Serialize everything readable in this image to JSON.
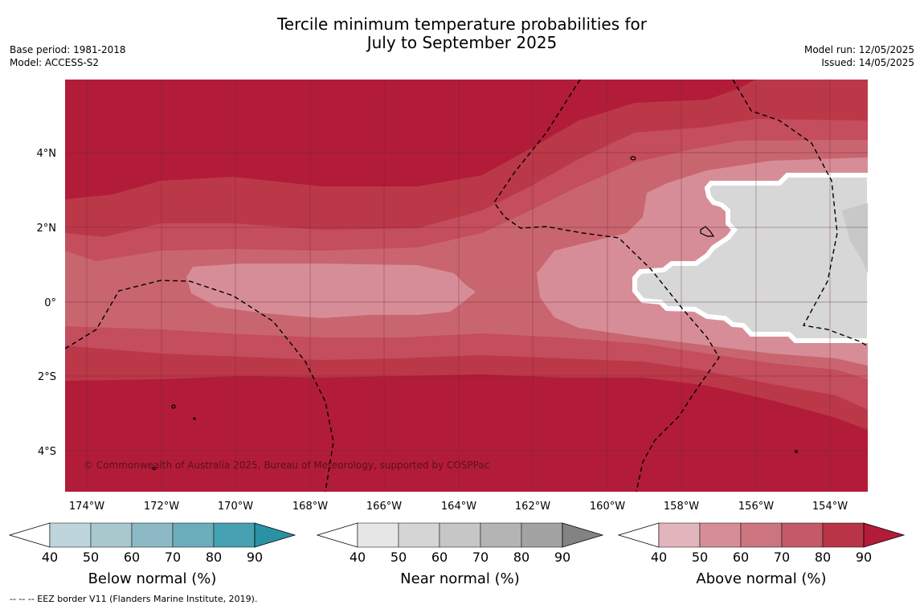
{
  "title_line1": "Tercile minimum temperature probabilities for",
  "title_line2": "July to September 2025",
  "meta_left": {
    "base_period": "Base period: 1981-2018",
    "model": "Model: ACCESS-S2"
  },
  "meta_right": {
    "model_run": "Model run: 12/05/2025",
    "issued": "Issued: 14/05/2025"
  },
  "map": {
    "lon_labels": [
      "174°W",
      "172°W",
      "170°W",
      "168°W",
      "166°W",
      "164°W",
      "162°W",
      "160°W",
      "158°W",
      "156°W",
      "154°W"
    ],
    "lat_labels": [
      "4°N",
      "2°N",
      "0°",
      "2°S",
      "4°S"
    ],
    "copyright": "© Commonwealth of Australia 2025, Bureau of Meteorology, supported by COSPPac",
    "legend_items": [
      "40",
      "50",
      "60",
      "70",
      "80",
      "90"
    ],
    "colors": {
      "above_70_80": "#c44d5e",
      "above_60_70": "#c9656f",
      "above_50_60": "#d68d97",
      "above_80_90": "#bb3849",
      "above_90": "#b21c38",
      "near_50_60": "#d7d7d7",
      "near_60_70": "#c8c8c8"
    }
  },
  "colorbars": [
    {
      "title": "Below normal (%)",
      "ticks": [
        "40",
        "50",
        "60",
        "70",
        "80",
        "90"
      ],
      "colors": [
        "#ffffff",
        "#bed5dc",
        "#a9c8ce",
        "#8cb9c4",
        "#6aadbb",
        "#46a1b2",
        "#2a92a4"
      ]
    },
    {
      "title": "Near normal (%)",
      "ticks": [
        "40",
        "50",
        "60",
        "70",
        "80",
        "90"
      ],
      "colors": [
        "#ffffff",
        "#e6e6e6",
        "#d5d5d5",
        "#c6c6c6",
        "#b4b4b4",
        "#a3a3a3",
        "#838383"
      ]
    },
    {
      "title": "Above normal (%)",
      "ticks": [
        "40",
        "50",
        "60",
        "70",
        "80",
        "90"
      ],
      "colors": [
        "#ffffff",
        "#e2b5bc",
        "#d68d97",
        "#cc7580",
        "#c45a67",
        "#b93447",
        "#b21c38"
      ]
    }
  ],
  "footnote": "--  --  -- EEZ border V11 (Flanders Marine Institute, 2019)."
}
